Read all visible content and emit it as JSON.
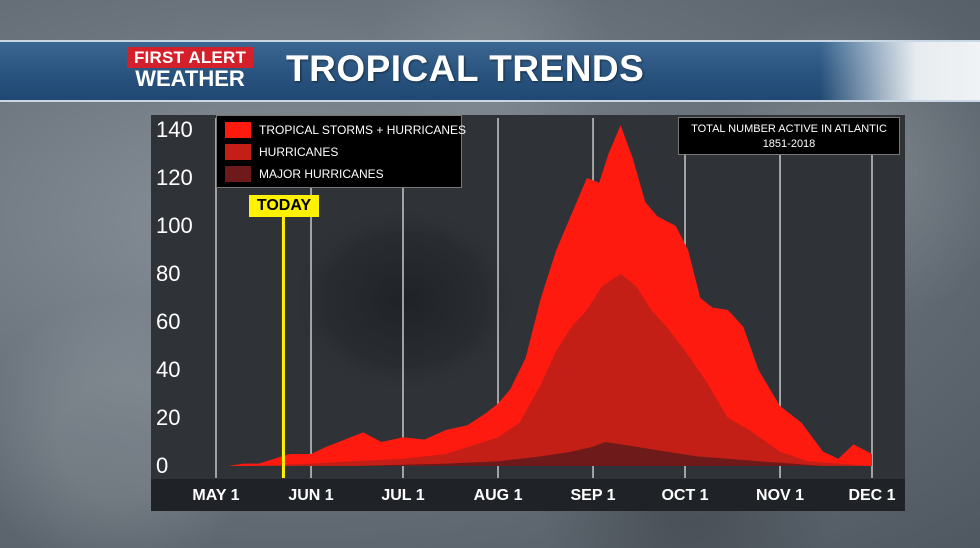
{
  "logo": {
    "line1": "FIRST ALERT",
    "line2": "WEATHER"
  },
  "title": "TROPICAL TRENDS",
  "note": {
    "line1": "TOTAL NUMBER ACTIVE IN ATLANTIC",
    "line2": "1851-2018"
  },
  "today_label": "TODAY",
  "colors": {
    "banner": "#2a5580",
    "logo_red": "#d3202a",
    "today": "#fff200",
    "storms": "#ff1a10",
    "hurricanes": "#c41f16",
    "major": "#6e1a1a"
  },
  "chart_data": {
    "type": "area",
    "xlabel": "",
    "ylabel": "",
    "ylim": [
      0,
      140
    ],
    "xlim": [
      "May 1",
      "Dec 1"
    ],
    "yticks": [
      0,
      20,
      40,
      60,
      80,
      100,
      120,
      140
    ],
    "xticks": [
      "MAY 1",
      "JUN 1",
      "JUL 1",
      "AUG 1",
      "SEP 1",
      "OCT 1",
      "NOV 1",
      "DEC 1"
    ],
    "today": "May 23",
    "legend": {
      "placement": "top-left",
      "entries": [
        "TROPICAL STORMS + HURRICANES",
        "HURRICANES",
        "MAJOR HURRICANES"
      ]
    },
    "grid": "vertical",
    "series": [
      {
        "name": "TROPICAL STORMS + HURRICANES",
        "color": "#ff1a10",
        "points": [
          [
            "May 5",
            0
          ],
          [
            "May 10",
            1
          ],
          [
            "May 15",
            1
          ],
          [
            "May 20",
            3
          ],
          [
            "May 25",
            5
          ],
          [
            "Jun 1",
            5
          ],
          [
            "Jun 6",
            8
          ],
          [
            "Jun 12",
            11
          ],
          [
            "Jun 18",
            14
          ],
          [
            "Jun 24",
            10
          ],
          [
            "Jul 1",
            12
          ],
          [
            "Jul 8",
            11
          ],
          [
            "Jul 15",
            15
          ],
          [
            "Jul 22",
            17
          ],
          [
            "Jul 28",
            22
          ],
          [
            "Aug 1",
            26
          ],
          [
            "Aug 5",
            32
          ],
          [
            "Aug 10",
            45
          ],
          [
            "Aug 15",
            70
          ],
          [
            "Aug 20",
            90
          ],
          [
            "Aug 25",
            105
          ],
          [
            "Aug 30",
            120
          ],
          [
            "Sep 3",
            118
          ],
          [
            "Sep 6",
            130
          ],
          [
            "Sep 10",
            142
          ],
          [
            "Sep 14",
            128
          ],
          [
            "Sep 18",
            110
          ],
          [
            "Sep 22",
            104
          ],
          [
            "Sep 28",
            100
          ],
          [
            "Oct 2",
            90
          ],
          [
            "Oct 6",
            70
          ],
          [
            "Oct 10",
            66
          ],
          [
            "Oct 15",
            65
          ],
          [
            "Oct 20",
            58
          ],
          [
            "Oct 25",
            40
          ],
          [
            "Nov 1",
            25
          ],
          [
            "Nov 8",
            18
          ],
          [
            "Nov 15",
            6
          ],
          [
            "Nov 20",
            3
          ],
          [
            "Nov 25",
            9
          ],
          [
            "Dec 1",
            5
          ]
        ]
      },
      {
        "name": "HURRICANES",
        "color": "#c41f16",
        "points": [
          [
            "May 10",
            0
          ],
          [
            "Jun 1",
            1
          ],
          [
            "Jun 15",
            2
          ],
          [
            "Jul 1",
            3
          ],
          [
            "Jul 15",
            5
          ],
          [
            "Aug 1",
            12
          ],
          [
            "Aug 8",
            18
          ],
          [
            "Aug 15",
            34
          ],
          [
            "Aug 20",
            48
          ],
          [
            "Aug 25",
            58
          ],
          [
            "Aug 30",
            65
          ],
          [
            "Sep 4",
            75
          ],
          [
            "Sep 10",
            80
          ],
          [
            "Sep 15",
            75
          ],
          [
            "Sep 20",
            65
          ],
          [
            "Sep 25",
            58
          ],
          [
            "Oct 1",
            48
          ],
          [
            "Oct 8",
            35
          ],
          [
            "Oct 15",
            20
          ],
          [
            "Oct 22",
            15
          ],
          [
            "Nov 1",
            6
          ],
          [
            "Nov 10",
            2
          ],
          [
            "Nov 20",
            1
          ],
          [
            "Dec 1",
            0
          ]
        ]
      },
      {
        "name": "MAJOR HURRICANES",
        "color": "#6e1a1a",
        "points": [
          [
            "May 20",
            0
          ],
          [
            "Jun 15",
            0
          ],
          [
            "Jul 15",
            1
          ],
          [
            "Aug 1",
            2
          ],
          [
            "Aug 15",
            4
          ],
          [
            "Aug 25",
            6
          ],
          [
            "Sep 1",
            8
          ],
          [
            "Sep 5",
            10
          ],
          [
            "Sep 10",
            9
          ],
          [
            "Sep 15",
            8
          ],
          [
            "Sep 25",
            6
          ],
          [
            "Oct 5",
            4
          ],
          [
            "Oct 15",
            3
          ],
          [
            "Oct 25",
            2
          ],
          [
            "Nov 5",
            1
          ],
          [
            "Nov 15",
            0
          ],
          [
            "Dec 1",
            0
          ]
        ]
      }
    ]
  }
}
